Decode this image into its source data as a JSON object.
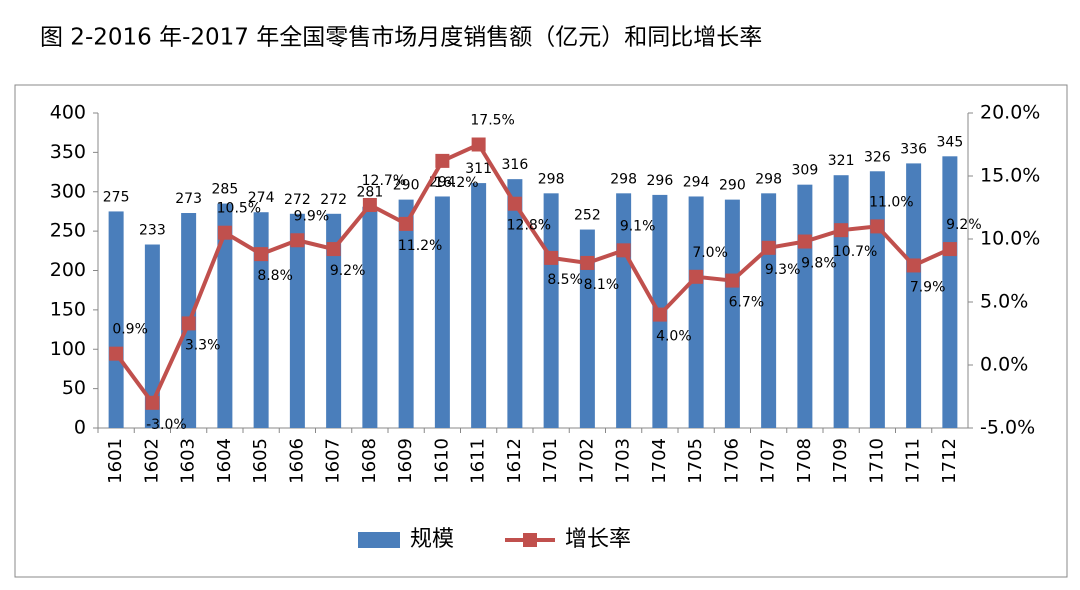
{
  "chart_data": {
    "type": "bar",
    "title": "图 2-2016 年-2017 年全国零售市场月度销售额（亿元）和同比增长率",
    "categories": [
      "1601",
      "1602",
      "1603",
      "1604",
      "1605",
      "1606",
      "1607",
      "1608",
      "1609",
      "1610",
      "1611",
      "1612",
      "1701",
      "1702",
      "1703",
      "1704",
      "1705",
      "1706",
      "1707",
      "1708",
      "1709",
      "1710",
      "1711",
      "1712"
    ],
    "series": [
      {
        "name": "规模",
        "type": "bar",
        "color": "#4a7ebb",
        "values": [
          275,
          233,
          273,
          285,
          274,
          272,
          272,
          281,
          290,
          294,
          311,
          316,
          298,
          252,
          298,
          296,
          294,
          290,
          298,
          309,
          321,
          326,
          336,
          345
        ]
      },
      {
        "name": "增长率",
        "type": "line",
        "axis": "y2",
        "color": "#c0504d",
        "values": [
          0.9,
          -3.0,
          3.3,
          10.5,
          8.8,
          9.9,
          9.2,
          12.7,
          11.2,
          16.2,
          17.5,
          12.8,
          8.5,
          8.1,
          9.1,
          4.0,
          7.0,
          6.7,
          9.3,
          9.8,
          10.7,
          11.0,
          7.9,
          9.2
        ],
        "value_labels": [
          "0.9%",
          "-3.0%",
          "3.3%",
          "10.5%",
          "8.8%",
          "9.9%",
          "9.2%",
          "12.7%",
          "11.2%",
          "16.2%",
          "17.5%",
          "12.8%",
          "8.5%",
          "8.1%",
          "9.1%",
          "4.0%",
          "7.0%",
          "6.7%",
          "9.3%",
          "9.8%",
          "10.7%",
          "11.0%",
          "7.9%",
          "9.2%"
        ]
      }
    ],
    "ylim": [
      0,
      400
    ],
    "yticks": [
      0,
      50,
      100,
      150,
      200,
      250,
      300,
      350,
      400
    ],
    "y2lim": [
      -5,
      20
    ],
    "y2ticks": [
      {
        "value": -5,
        "label": "-5.0%"
      },
      {
        "value": 0,
        "label": "0.0%"
      },
      {
        "value": 5,
        "label": "5.0%"
      },
      {
        "value": 10,
        "label": "10.0%"
      },
      {
        "value": 15,
        "label": "15.0%"
      },
      {
        "value": 20,
        "label": "20.0%"
      }
    ],
    "grid": false
  }
}
